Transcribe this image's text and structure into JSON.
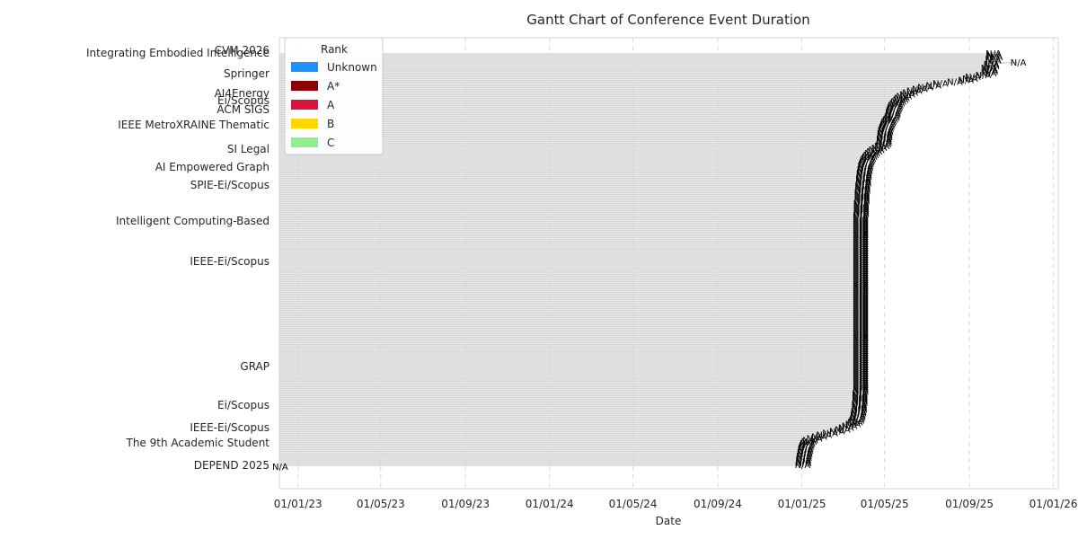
{
  "chart_data": {
    "type": "bar",
    "title": "Gantt Chart of Conference Event Duration",
    "xlabel": "Date",
    "ylabel": "",
    "x_ticks": [
      "01/01/23",
      "01/05/23",
      "01/09/23",
      "01/01/24",
      "01/05/24",
      "01/09/24",
      "01/01/25",
      "01/05/25",
      "01/09/25",
      "01/01/26"
    ],
    "xlim": [
      "2022-12-05",
      "2026-01-08"
    ],
    "grid": "vertical dashed",
    "legend": {
      "title": "Rank",
      "placement": "top-left",
      "entries": [
        {
          "label": "Unknown",
          "color": "#1E90FF"
        },
        {
          "label": "A*",
          "color": "#8B0000"
        },
        {
          "label": "A",
          "color": "#DC143C"
        },
        {
          "label": "B",
          "color": "#FFD700"
        },
        {
          "label": "C",
          "color": "#90EE90"
        }
      ]
    },
    "bar_color": "#D3D3D3",
    "bar_start": "2022-12-05",
    "bar_label": "N/A",
    "event_labels": [
      "Integrating Embodied Intelligence",
      "AI4Energy",
      "Ei/Scopus",
      "ACM SIGS",
      "IEEE MetroXRAINE Thematic",
      "Springer",
      "SI Legal",
      "AI Empowered Graph",
      "SPIE-Ei/Scopus",
      "Intelligent Computing-Based",
      "IEEE-Ei/Scopus",
      "GRAP",
      "Ei/Scopus",
      "IEEE-Ei/Scopus",
      "The 9th Academic Student",
      "DEPEND 2025",
      "CVM 2026"
    ],
    "events_end": [
      "2025-10-05",
      "2025-10-06",
      "2025-10-07",
      "2025-10-04",
      "2025-10-05",
      "2025-11-10",
      "2025-10-02",
      "2025-10-02",
      "2025-09-28",
      "2025-09-30",
      "2025-09-30",
      "2025-09-28",
      "2025-09-20",
      "2025-09-05",
      "2025-09-01",
      "2025-08-26",
      "2025-08-10",
      "2025-07-20",
      "2025-07-10",
      "2025-06-28",
      "2025-06-20",
      "2025-06-12",
      "2025-06-06",
      "2025-06-02",
      "2025-05-28",
      "2025-05-25",
      "2025-05-23",
      "2025-05-20",
      "2025-05-18",
      "2025-05-16",
      "2025-05-15",
      "2025-05-14",
      "2025-05-13",
      "2025-05-12",
      "2025-05-12",
      "2025-05-11",
      "2025-05-10",
      "2025-05-08",
      "2025-05-06",
      "2025-05-05",
      "2025-05-04",
      "2025-05-03",
      "2025-05-02",
      "2025-05-01",
      "2025-05-01",
      "2025-04-30",
      "2025-04-30",
      "2025-04-30",
      "2025-04-29",
      "2025-04-29",
      "2025-04-29",
      "2025-04-28",
      "2025-04-26",
      "2025-04-22",
      "2025-04-18",
      "2025-04-15",
      "2025-04-12",
      "2025-04-10",
      "2025-04-08",
      "2025-04-06",
      "2025-04-05",
      "2025-04-04",
      "2025-04-03",
      "2025-04-02",
      "2025-04-02",
      "2025-04-01",
      "2025-04-01",
      "2025-03-31",
      "2025-03-31",
      "2025-03-31",
      "2025-03-30",
      "2025-03-30",
      "2025-03-30",
      "2025-03-30",
      "2025-03-29",
      "2025-03-29",
      "2025-03-29",
      "2025-03-29",
      "2025-03-28",
      "2025-03-28",
      "2025-03-28",
      "2025-03-28",
      "2025-03-28",
      "2025-03-28",
      "2025-03-27",
      "2025-03-27",
      "2025-03-27",
      "2025-03-27",
      "2025-03-27",
      "2025-03-27",
      "2025-03-27",
      "2025-03-26",
      "2025-03-26",
      "2025-03-26",
      "2025-03-26",
      "2025-03-26",
      "2025-03-26",
      "2025-03-26",
      "2025-03-26",
      "2025-03-26",
      "2025-03-26",
      "2025-03-26",
      "2025-03-26",
      "2025-03-26",
      "2025-03-26",
      "2025-03-26",
      "2025-03-26",
      "2025-03-26",
      "2025-03-26",
      "2025-03-26",
      "2025-03-26",
      "2025-03-26",
      "2025-03-26",
      "2025-03-26",
      "2025-03-26",
      "2025-03-26",
      "2025-03-26",
      "2025-03-26",
      "2025-03-26",
      "2025-03-26",
      "2025-03-26",
      "2025-03-26",
      "2025-03-26",
      "2025-03-26",
      "2025-03-26",
      "2025-03-26",
      "2025-03-26",
      "2025-03-26",
      "2025-03-26",
      "2025-03-26",
      "2025-03-26",
      "2025-03-26",
      "2025-03-26",
      "2025-03-26",
      "2025-03-26",
      "2025-03-26",
      "2025-03-26",
      "2025-03-26",
      "2025-03-26",
      "2025-03-26",
      "2025-03-26",
      "2025-03-26",
      "2025-03-26",
      "2025-03-26",
      "2025-03-26",
      "2025-03-26",
      "2025-03-26",
      "2025-03-26",
      "2025-03-26",
      "2025-03-26",
      "2025-03-26",
      "2025-03-26",
      "2025-03-26",
      "2025-03-26",
      "2025-03-26",
      "2025-03-26",
      "2025-03-26",
      "2025-03-26",
      "2025-03-26",
      "2025-03-26",
      "2025-03-26",
      "2025-03-26",
      "2025-03-26",
      "2025-03-26",
      "2025-03-26",
      "2025-03-26",
      "2025-03-26",
      "2025-03-26",
      "2025-03-26",
      "2025-03-26",
      "2025-03-26",
      "2025-03-26",
      "2025-03-26",
      "2025-03-26",
      "2025-03-26",
      "2025-03-26",
      "2025-03-26",
      "2025-03-26",
      "2025-03-26",
      "2025-03-26",
      "2025-03-26",
      "2025-03-26",
      "2025-03-26",
      "2025-03-26",
      "2025-03-26",
      "2025-03-26",
      "2025-03-26",
      "2025-03-26",
      "2025-03-26",
      "2025-03-26",
      "2025-03-26",
      "2025-03-25",
      "2025-03-25",
      "2025-03-25",
      "2025-03-25",
      "2025-03-25",
      "2025-03-25",
      "2025-03-24",
      "2025-03-24",
      "2025-03-24",
      "2025-03-24",
      "2025-03-23",
      "2025-03-23",
      "2025-03-22",
      "2025-03-22",
      "2025-03-21",
      "2025-03-20",
      "2025-03-18",
      "2025-03-15",
      "2025-03-10",
      "2025-03-05",
      "2025-02-28",
      "2025-02-20",
      "2025-02-10",
      "2025-02-01",
      "2025-01-25",
      "2025-01-18",
      "2025-01-12",
      "2025-01-10",
      "2025-01-08",
      "2025-01-07",
      "2025-01-06",
      "2025-01-05",
      "2025-01-05",
      "2025-01-04",
      "2025-01-04",
      "2025-01-03",
      "2025-01-03",
      "2025-01-02",
      "2025-01-02",
      "2025-01-02",
      "2025-01-01",
      "2022-12-05"
    ]
  }
}
